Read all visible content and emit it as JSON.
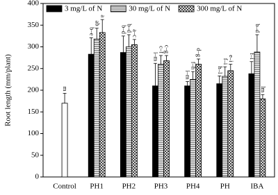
{
  "chart_data": {
    "type": "bar",
    "y_label": "Root length (mm/plant)",
    "categories": [
      "Control",
      "PH1",
      "PH2",
      "PH3",
      "PH4",
      "PH",
      "IBA"
    ],
    "series": [
      {
        "color": "#ffffff",
        "hatch": "none",
        "values": [
          170,
          null,
          null,
          null,
          null,
          null,
          null
        ],
        "errors": [
          23,
          null,
          null,
          null,
          null,
          null,
          null
        ],
        "labels": [
          "m",
          null,
          null,
          null,
          null,
          null,
          null
        ]
      },
      {
        "name": "3 mg/L of N",
        "color": "#000000",
        "hatch": "none",
        "values": [
          null,
          283,
          287,
          210,
          210,
          215,
          238
        ],
        "errors": [
          null,
          38,
          38,
          52,
          10,
          18,
          28
        ],
        "labels": [
          null,
          "b–e",
          "b–d",
          "i–m",
          "i–m",
          "h–l",
          "f–i"
        ]
      },
      {
        "name": "30 mg/L of N",
        "color": "#ffffff",
        "hatch": "horizontal",
        "values": [
          null,
          318,
          300,
          260,
          225,
          232,
          288
        ],
        "errors": [
          null,
          25,
          28,
          20,
          18,
          22,
          40
        ],
        "labels": [
          null,
          "ab",
          "b–d",
          "c–f",
          "f–h",
          "f–i",
          "b–d"
        ]
      },
      {
        "name": "300 mg/L of N",
        "color": "#ffffff",
        "hatch": "cross",
        "values": [
          null,
          333,
          305,
          268,
          260,
          245,
          180
        ],
        "errors": [
          null,
          30,
          12,
          12,
          12,
          15,
          10
        ],
        "labels": [
          null,
          "a",
          "a–c",
          "c–g",
          "d–g",
          "e–i",
          "lm"
        ]
      }
    ],
    "ylim": [
      0,
      400
    ],
    "yticks": [
      0,
      50,
      100,
      150,
      200,
      250,
      300,
      350,
      400
    ],
    "grid": false
  }
}
